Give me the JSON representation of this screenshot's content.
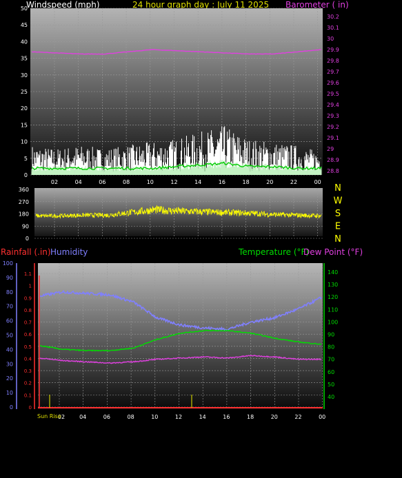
{
  "header": {
    "left": "Windspeed (mph)",
    "center": "24 hour graph day : July 11 2025",
    "right": "Barometer ( in)"
  },
  "colors": {
    "wind_gust": "#ffffff",
    "wind_avg_light": "#b8f0b8",
    "wind_avg": "#00cc00",
    "barometer": "#e040e0",
    "direction": "#ffff00",
    "rain": "#ff3030",
    "humidity": "#8080ff",
    "temperature": "#00dd00",
    "dewpoint": "#e040e0",
    "sun": "#c8c800",
    "grid": "#9a9a9a"
  },
  "time_ticks": [
    "02",
    "04",
    "06",
    "08",
    "10",
    "12",
    "14",
    "16",
    "18",
    "20",
    "22",
    "00"
  ],
  "panel1": {
    "left_axis_ticks": [
      "0",
      "5",
      "10",
      "15",
      "20",
      "25",
      "30",
      "35",
      "40",
      "45",
      "50"
    ],
    "right_axis_ticks": [
      "28.8",
      "28.9",
      "29",
      "29.1",
      "29.2",
      "29.3",
      "29.4",
      "29.5",
      "29.6",
      "29.7",
      "29.8",
      "29.9",
      "30",
      "30.1",
      "30.2"
    ]
  },
  "panel2": {
    "left_axis_ticks": [
      "0",
      "90",
      "180",
      "270",
      "360"
    ],
    "compass": [
      "N",
      "W",
      "S",
      "E",
      "N"
    ]
  },
  "panel3": {
    "rain_label": "Rainfall (.in)",
    "humidity_label": "Humidity",
    "temp_label": "Temperature (°F)",
    "dew_label": "Dew Point (°F)",
    "humidity_ticks": [
      "0",
      "10",
      "20",
      "30",
      "40",
      "50",
      "60",
      "70",
      "80",
      "90",
      "100"
    ],
    "rain_ticks": [
      "0",
      "0.1",
      "0.2",
      "0.3",
      "0.4",
      "0.5",
      "0.6",
      "0.7",
      "0.8",
      "0.9",
      "1",
      "1.1"
    ],
    "temp_ticks": [
      "40",
      "50",
      "60",
      "70",
      "80",
      "90",
      "100",
      "110",
      "120",
      "130",
      "140"
    ],
    "sunrise_label": "Sun Rise"
  },
  "chart_data": [
    {
      "type": "line",
      "title": "24 hour graph day : July 11 2025",
      "series": [
        {
          "name": "Windspeed (mph)",
          "axis": "left",
          "ylim": [
            0,
            50
          ],
          "x": [
            "00",
            "02",
            "04",
            "06",
            "08",
            "10",
            "12",
            "14",
            "16",
            "18",
            "20",
            "22",
            "00"
          ],
          "avg": [
            2,
            2,
            2,
            2,
            2,
            2,
            2.5,
            3,
            3.5,
            2.5,
            2.5,
            2,
            2
          ],
          "gust_peak": [
            8,
            7,
            8,
            7,
            8,
            9,
            10,
            12,
            14,
            10,
            9,
            8,
            6
          ]
        },
        {
          "name": "Barometer ( in)",
          "axis": "right",
          "ylim": [
            28.8,
            30.25
          ],
          "x": [
            "00",
            "02",
            "04",
            "06",
            "08",
            "10",
            "12",
            "14",
            "16",
            "18",
            "20",
            "22",
            "00"
          ],
          "values": [
            29.88,
            29.87,
            29.86,
            29.86,
            29.88,
            29.9,
            29.89,
            29.88,
            29.87,
            29.86,
            29.86,
            29.88,
            29.9
          ]
        }
      ]
    },
    {
      "type": "line",
      "series": [
        {
          "name": "Wind Direction",
          "ylim": [
            0,
            360
          ],
          "x": [
            "00",
            "02",
            "04",
            "06",
            "08",
            "10",
            "12",
            "14",
            "16",
            "18",
            "20",
            "22",
            "00"
          ],
          "values": [
            165,
            165,
            170,
            170,
            190,
            210,
            200,
            195,
            190,
            185,
            175,
            170,
            165
          ]
        }
      ]
    },
    {
      "type": "line",
      "series": [
        {
          "name": "Humidity",
          "axis": "left",
          "ylim": [
            0,
            100
          ],
          "x": [
            "00",
            "02",
            "04",
            "06",
            "08",
            "10",
            "12",
            "14",
            "16",
            "18",
            "20",
            "22",
            "00"
          ],
          "values": [
            77,
            80,
            79,
            78,
            73,
            62,
            57,
            55,
            54,
            59,
            62,
            68,
            76
          ]
        },
        {
          "name": "Temperature (°F)",
          "axis": "right",
          "ylim": [
            30,
            145
          ],
          "x": [
            "00",
            "02",
            "04",
            "06",
            "08",
            "10",
            "12",
            "14",
            "16",
            "18",
            "20",
            "22",
            "00"
          ],
          "values": [
            81,
            78,
            77,
            77,
            79,
            86,
            91,
            93,
            93,
            91,
            87,
            84,
            82
          ]
        },
        {
          "name": "Dew Point (°F)",
          "axis": "right",
          "ylim": [
            30,
            145
          ],
          "x": [
            "00",
            "02",
            "04",
            "06",
            "08",
            "10",
            "12",
            "14",
            "16",
            "18",
            "20",
            "22",
            "00"
          ],
          "values": [
            71,
            69,
            68,
            67,
            68,
            70,
            71,
            72,
            71,
            73,
            72,
            70,
            70
          ]
        },
        {
          "name": "Rainfall (.in)",
          "axis": "left2",
          "ylim": [
            0,
            1.2
          ],
          "x": [
            "00",
            "02",
            "04",
            "06",
            "08",
            "10",
            "12",
            "14",
            "16",
            "18",
            "20",
            "22",
            "00"
          ],
          "values": [
            0,
            0,
            0,
            0,
            0,
            0,
            0,
            0,
            0,
            0,
            0,
            0,
            0
          ]
        }
      ],
      "markers": [
        "Sun Rise"
      ]
    }
  ]
}
